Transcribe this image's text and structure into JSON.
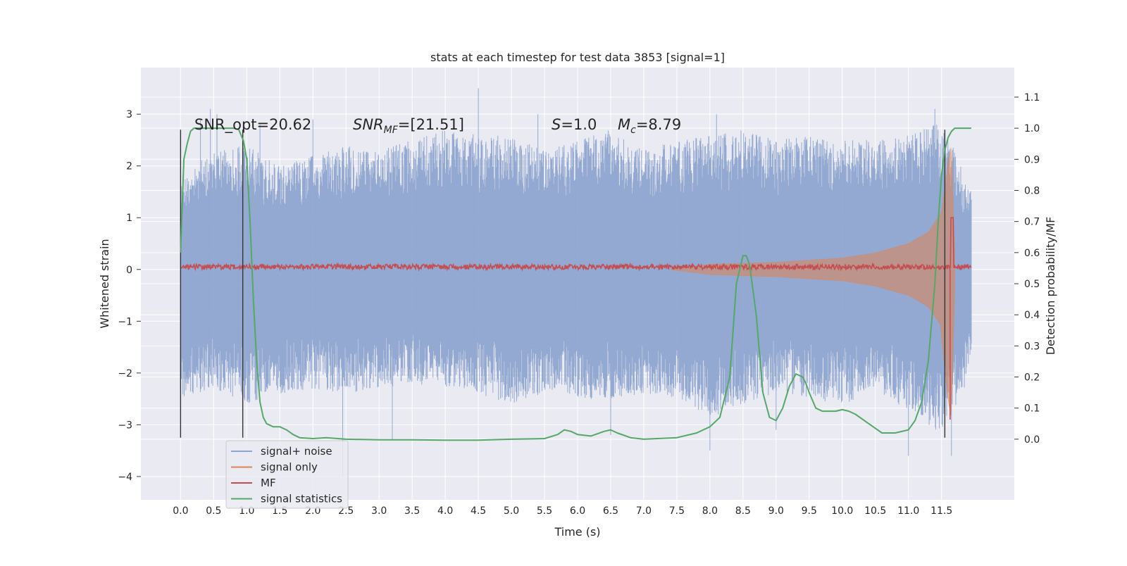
{
  "chart_data": {
    "type": "line",
    "title": "stats at each timestep for test data 3853 [signal=1]",
    "xlabel": "Time (s)",
    "ylabel": "Whitened strain",
    "y2label": "Detection probability/MF",
    "xlim": [
      -0.6,
      12.6
    ],
    "ylim": [
      -4.45,
      3.9
    ],
    "y2lim": [
      -0.195,
      1.195
    ],
    "x_ticks": [
      "0.0",
      "0.5",
      "1.0",
      "1.5",
      "2.0",
      "2.5",
      "3.0",
      "3.5",
      "4.0",
      "4.5",
      "5.0",
      "5.5",
      "6.0",
      "6.5",
      "7.0",
      "7.5",
      "8.0",
      "8.5",
      "9.0",
      "9.5",
      "10.0",
      "10.5",
      "11.0",
      "11.5"
    ],
    "y_ticks": [
      "3",
      "2",
      "1",
      "0",
      "−1",
      "−2",
      "−3",
      "−4"
    ],
    "y2_ticks": [
      "1.1",
      "1.0",
      "0.9",
      "0.8",
      "0.7",
      "0.6",
      "0.5",
      "0.4",
      "0.3",
      "0.2",
      "0.1",
      "0.0"
    ],
    "grid": true,
    "legend_position": "lower-left",
    "annotations": {
      "snr_opt": "SNR_opt=20.62",
      "snr_mf_main": "SNR",
      "snr_mf_sub": "MF",
      "snr_mf_value": "=[21.51]",
      "s_main": "S",
      "s_value": "=1.0",
      "mc_main": "M",
      "mc_sub": "c",
      "mc_value": "=8.79"
    },
    "series": [
      {
        "name": "signal+ noise",
        "color": "#8fa5cf",
        "axis": "left",
        "x_range": [
          0.0,
          11.95
        ],
        "envelope_upper": [
          [
            0.0,
            1.8
          ],
          [
            0.5,
            2.3
          ],
          [
            1.0,
            2.4
          ],
          [
            1.5,
            2.0
          ],
          [
            2.0,
            2.2
          ],
          [
            2.5,
            2.4
          ],
          [
            3.0,
            2.3
          ],
          [
            3.5,
            2.5
          ],
          [
            4.0,
            2.7
          ],
          [
            4.5,
            2.6
          ],
          [
            5.0,
            2.6
          ],
          [
            5.5,
            2.3
          ],
          [
            6.0,
            2.5
          ],
          [
            6.5,
            2.7
          ],
          [
            7.0,
            2.3
          ],
          [
            7.5,
            2.5
          ],
          [
            8.0,
            2.6
          ],
          [
            8.5,
            2.7
          ],
          [
            9.0,
            2.5
          ],
          [
            9.5,
            2.6
          ],
          [
            10.0,
            2.5
          ],
          [
            10.5,
            2.5
          ],
          [
            11.0,
            2.6
          ],
          [
            11.5,
            2.9
          ],
          [
            11.95,
            1.5
          ]
        ],
        "envelope_lower": [
          [
            0.0,
            -2.5
          ],
          [
            0.5,
            -2.3
          ],
          [
            1.0,
            -2.6
          ],
          [
            1.5,
            -2.4
          ],
          [
            2.0,
            -2.3
          ],
          [
            2.5,
            -2.4
          ],
          [
            3.0,
            -2.3
          ],
          [
            3.5,
            -2.2
          ],
          [
            4.0,
            -2.3
          ],
          [
            4.5,
            -2.4
          ],
          [
            5.0,
            -2.6
          ],
          [
            5.5,
            -2.4
          ],
          [
            6.0,
            -2.5
          ],
          [
            6.5,
            -2.5
          ],
          [
            7.0,
            -2.4
          ],
          [
            7.5,
            -2.5
          ],
          [
            8.0,
            -2.9
          ],
          [
            8.5,
            -2.6
          ],
          [
            9.0,
            -2.4
          ],
          [
            9.5,
            -2.5
          ],
          [
            10.0,
            -2.6
          ],
          [
            10.5,
            -2.4
          ],
          [
            11.0,
            -2.7
          ],
          [
            11.5,
            -3.2
          ],
          [
            11.95,
            -2.0
          ]
        ],
        "spikes": [
          [
            0.3,
            2.9
          ],
          [
            0.45,
            3.1
          ],
          [
            0.55,
            3.0
          ],
          [
            1.2,
            2.8
          ],
          [
            2.0,
            2.9
          ],
          [
            3.2,
            -3.3
          ],
          [
            2.45,
            -4.0
          ],
          [
            4.5,
            3.5
          ],
          [
            5.4,
            3.0
          ],
          [
            6.5,
            -3.2
          ],
          [
            8.0,
            -3.5
          ],
          [
            8.1,
            3.0
          ],
          [
            9.0,
            -3.1
          ],
          [
            11.0,
            -3.6
          ],
          [
            11.4,
            3.1
          ],
          [
            11.65,
            -3.6
          ]
        ]
      },
      {
        "name": "signal only",
        "color": "#dd8452",
        "axis": "left",
        "chirp_amplitude": [
          [
            7.4,
            0.0
          ],
          [
            8.0,
            0.1
          ],
          [
            9.0,
            0.14
          ],
          [
            10.0,
            0.22
          ],
          [
            10.5,
            0.32
          ],
          [
            11.0,
            0.5
          ],
          [
            11.3,
            0.72
          ],
          [
            11.5,
            1.1
          ],
          [
            11.6,
            2.1
          ],
          [
            11.65,
            2.4
          ],
          [
            11.7,
            0.3
          ]
        ]
      },
      {
        "name": "MF",
        "color": "#c44e52",
        "axis": "left",
        "baseline": 0.05,
        "noise_amplitude": 0.05,
        "peak": [
          11.66,
          1.0
        ],
        "trough": [
          11.63,
          -2.9
        ]
      },
      {
        "name": "signal statistics",
        "color": "#55a868",
        "axis": "right",
        "x": [
          0.0,
          0.05,
          0.1,
          0.15,
          0.2,
          0.3,
          0.5,
          0.7,
          0.8,
          0.88,
          0.95,
          1.0,
          1.05,
          1.1,
          1.15,
          1.2,
          1.25,
          1.3,
          1.4,
          1.5,
          1.6,
          1.7,
          1.8,
          2.0,
          2.2,
          2.5,
          3.0,
          3.5,
          4.0,
          4.5,
          5.0,
          5.5,
          5.7,
          5.8,
          5.9,
          6.0,
          6.2,
          6.4,
          6.5,
          6.6,
          6.8,
          7.0,
          7.5,
          7.8,
          8.0,
          8.15,
          8.3,
          8.4,
          8.5,
          8.55,
          8.6,
          8.7,
          8.8,
          8.9,
          9.0,
          9.1,
          9.2,
          9.3,
          9.4,
          9.45,
          9.5,
          9.6,
          9.7,
          9.8,
          9.9,
          10.0,
          10.1,
          10.2,
          10.4,
          10.6,
          10.8,
          11.0,
          11.1,
          11.2,
          11.3,
          11.4,
          11.45,
          11.5,
          11.55,
          11.6,
          11.65,
          11.7,
          11.8,
          11.95
        ],
        "values": [
          0.6,
          0.9,
          0.95,
          0.99,
          1.0,
          1.0,
          1.0,
          1.0,
          1.0,
          0.995,
          0.96,
          0.9,
          0.7,
          0.45,
          0.25,
          0.12,
          0.07,
          0.05,
          0.04,
          0.04,
          0.03,
          0.015,
          0.005,
          0.002,
          0.005,
          0.0,
          -0.002,
          -0.002,
          -0.003,
          -0.003,
          0.0,
          0.002,
          0.015,
          0.03,
          0.025,
          0.015,
          0.01,
          0.025,
          0.03,
          0.02,
          0.005,
          0.0,
          0.005,
          0.02,
          0.04,
          0.07,
          0.2,
          0.5,
          0.59,
          0.59,
          0.56,
          0.4,
          0.15,
          0.07,
          0.06,
          0.1,
          0.17,
          0.21,
          0.2,
          0.18,
          0.15,
          0.1,
          0.09,
          0.09,
          0.09,
          0.095,
          0.09,
          0.08,
          0.05,
          0.02,
          0.02,
          0.03,
          0.06,
          0.12,
          0.25,
          0.5,
          0.7,
          0.85,
          0.93,
          0.97,
          0.99,
          1.0,
          1.0,
          1.0
        ]
      }
    ],
    "vertical_lines": [
      {
        "x": 0.0,
        "y_range": [
          -3.25,
          2.7
        ],
        "color": "#333333"
      },
      {
        "x": 0.94,
        "y_range": [
          -3.25,
          2.7
        ],
        "color": "#333333"
      },
      {
        "x": 11.55,
        "y_range": [
          -3.25,
          2.7
        ],
        "color": "#333333"
      }
    ]
  }
}
